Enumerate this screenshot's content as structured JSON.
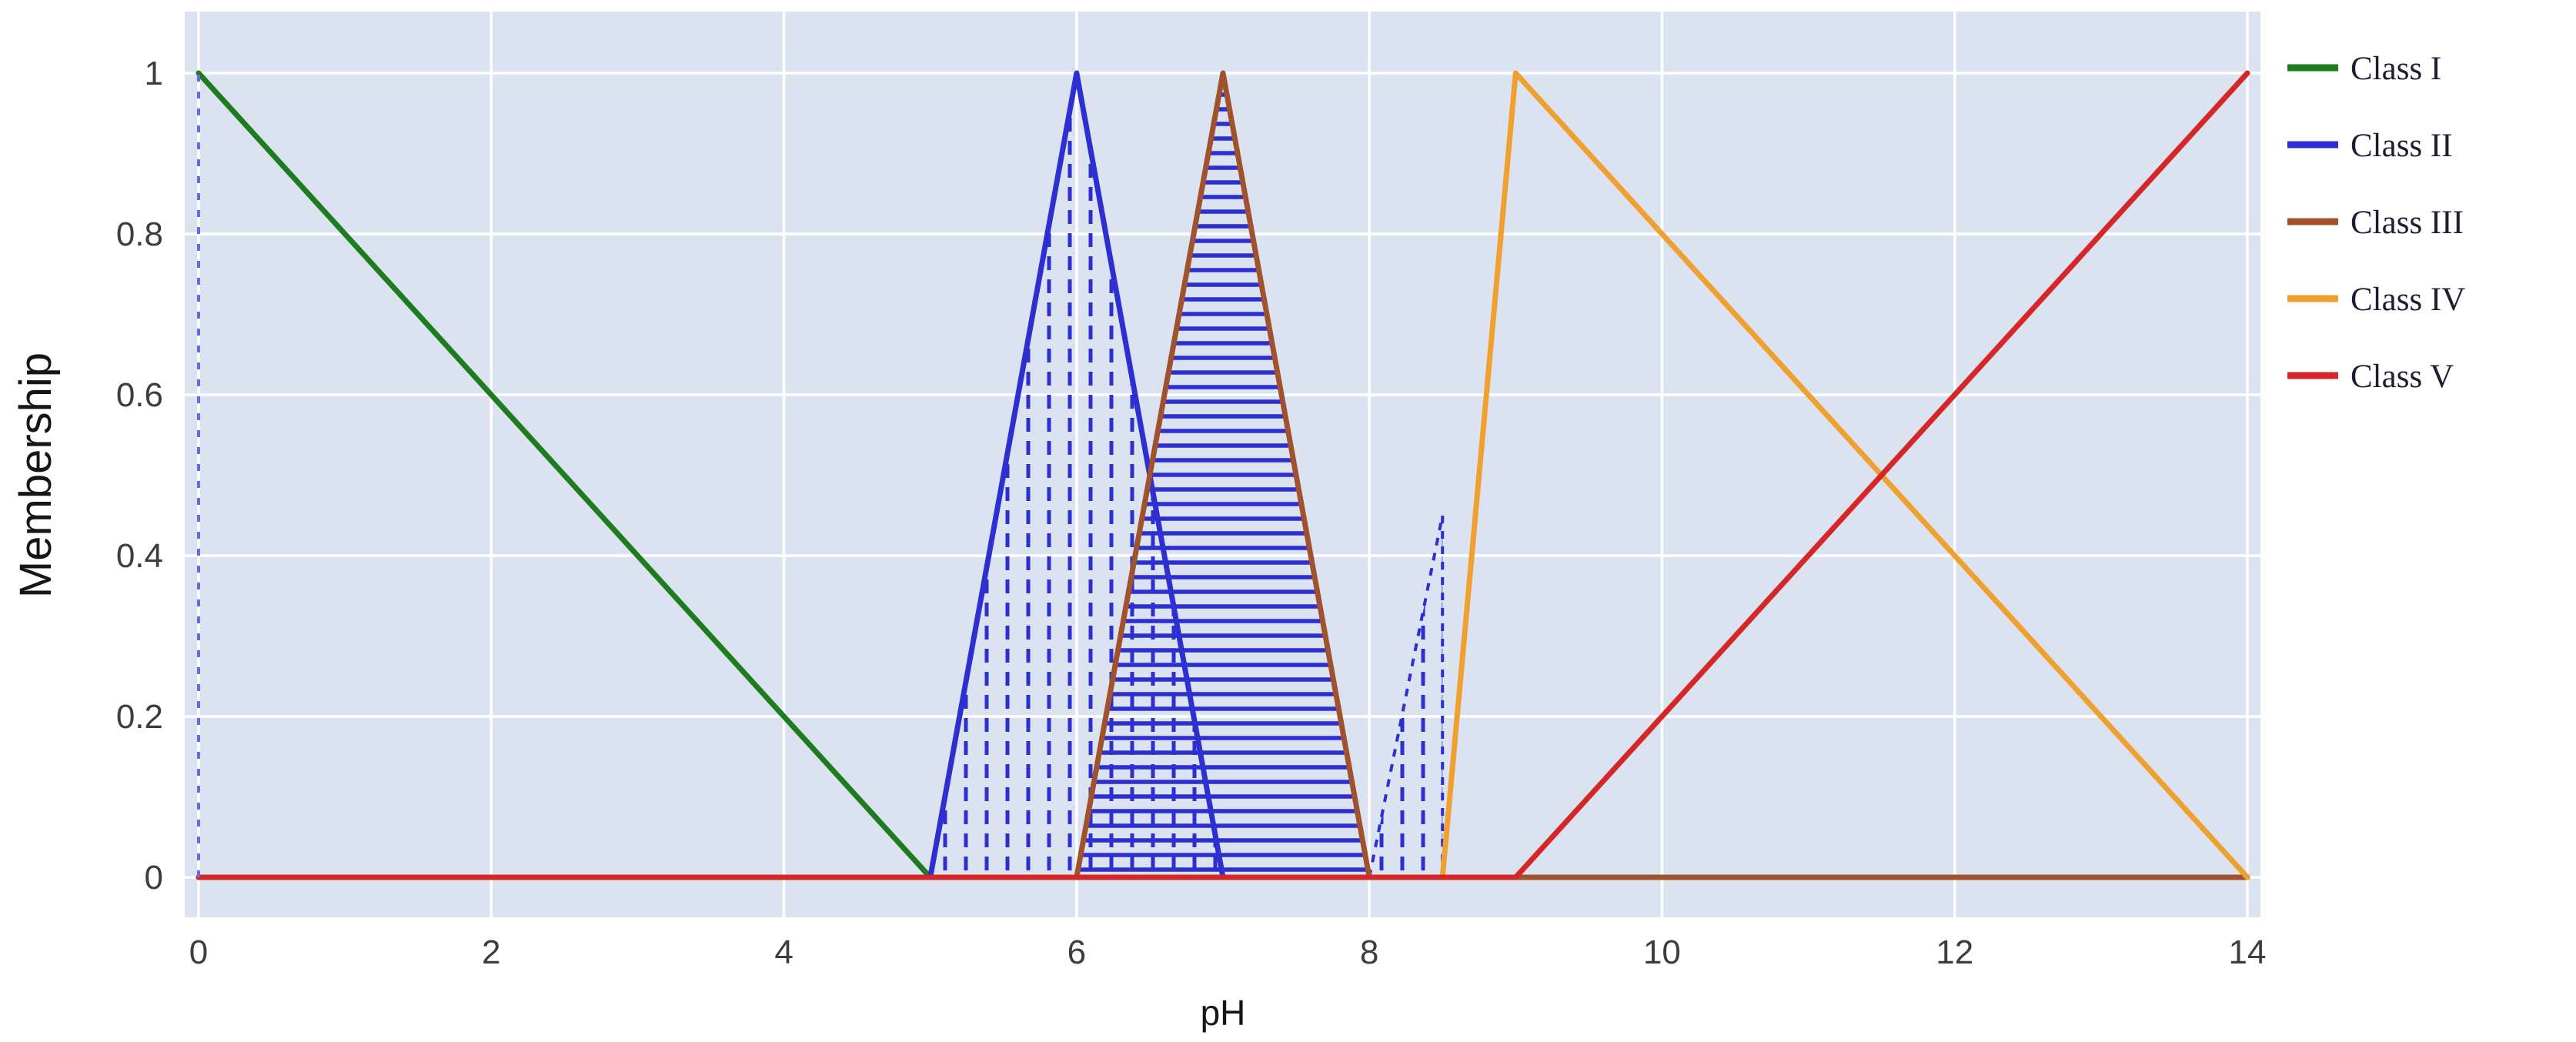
{
  "chart_data": {
    "type": "line",
    "title": "",
    "xlabel": "pH",
    "ylabel": "Membership",
    "xlim": [
      0,
      14
    ],
    "ylim": [
      0,
      1
    ],
    "xticks": [
      0,
      2,
      4,
      6,
      8,
      10,
      12,
      14
    ],
    "yticks": [
      0,
      0.2,
      0.4,
      0.6,
      0.8,
      1
    ],
    "grid": true,
    "legend_position": "right-outside",
    "colors": {
      "plot_background": "#dbe3f1",
      "grid": "#ffffff",
      "tick_text": "#3d3d3d",
      "axis_label_text": "#161616",
      "legend_text": "#1e1e32"
    },
    "series": [
      {
        "name": "Class I",
        "color": "#1e7b1e",
        "points": [
          [
            0,
            1
          ],
          [
            5,
            0
          ],
          [
            14,
            0
          ]
        ]
      },
      {
        "name": "Class II",
        "color": "#2d2fd0",
        "points": [
          [
            0,
            0
          ],
          [
            5,
            0
          ],
          [
            6,
            1
          ],
          [
            7,
            0
          ],
          [
            14,
            0
          ]
        ]
      },
      {
        "name": "Class III",
        "color": "#a0522d",
        "points": [
          [
            0,
            0
          ],
          [
            6,
            0
          ],
          [
            7,
            1
          ],
          [
            8,
            0
          ],
          [
            14,
            0
          ]
        ]
      },
      {
        "name": "Class IV",
        "color": "#f0a02e",
        "points": [
          [
            0,
            0
          ],
          [
            8.5,
            0
          ],
          [
            9,
            1
          ],
          [
            14,
            0
          ]
        ]
      },
      {
        "name": "Class V",
        "color": "#d62728",
        "points": [
          [
            0,
            0
          ],
          [
            9,
            0
          ],
          [
            14,
            1
          ]
        ]
      }
    ],
    "hatched_regions": [
      {
        "hatch": "vertical-dashed",
        "color": "#2d2fd0",
        "outline": false,
        "polygon": [
          [
            5,
            0
          ],
          [
            6,
            1
          ],
          [
            7,
            0
          ]
        ]
      },
      {
        "hatch": "horizontal",
        "color": "#2d2fd0",
        "outline": false,
        "polygon": [
          [
            6,
            0
          ],
          [
            7,
            1
          ],
          [
            8,
            0
          ]
        ]
      },
      {
        "hatch": "vertical-dashed",
        "color": "#2d2fd0",
        "outline": true,
        "polygon": [
          [
            8,
            0
          ],
          [
            8.5,
            0.45
          ],
          [
            8.5,
            0
          ]
        ]
      }
    ],
    "dashed_verticals": [
      {
        "x": 0,
        "from": 0,
        "to": 1,
        "color": "#6a6ade"
      }
    ]
  }
}
